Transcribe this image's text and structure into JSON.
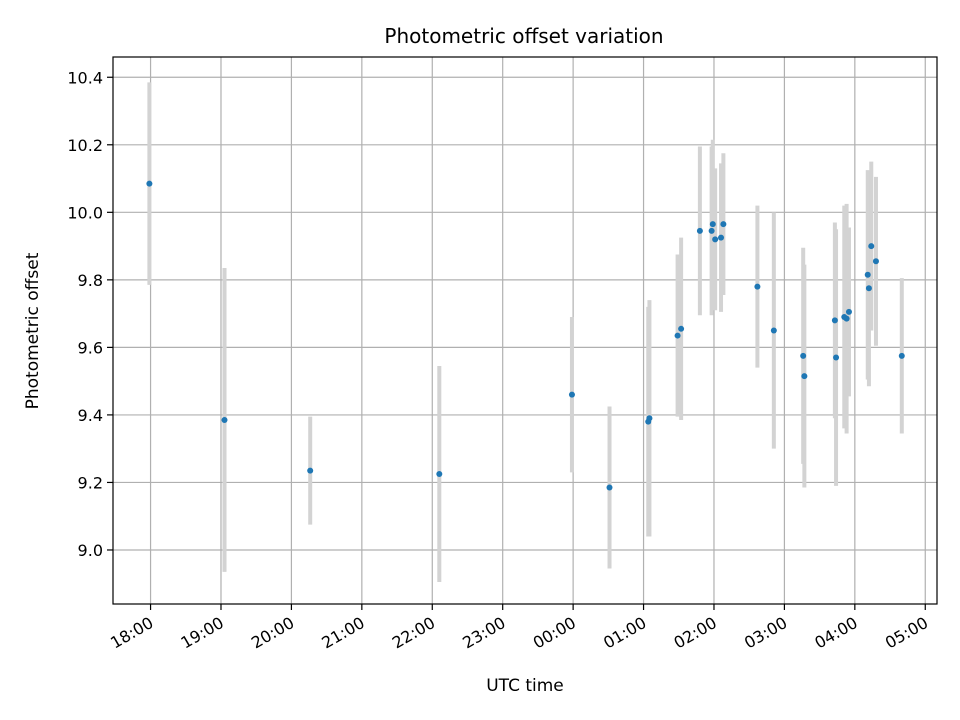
{
  "chart_data": {
    "type": "scatter",
    "title": "Photometric offset variation",
    "xlabel": "UTC time",
    "ylabel": "Photometric offset",
    "x_axis_type": "time",
    "x_ticks": [
      "18:00",
      "19:00",
      "20:00",
      "21:00",
      "22:00",
      "23:00",
      "00:00",
      "01:00",
      "02:00",
      "03:00",
      "04:00",
      "05:00"
    ],
    "y_ticks": [
      "9.0",
      "9.2",
      "9.4",
      "9.6",
      "9.8",
      "10.0",
      "10.2",
      "10.4"
    ],
    "ylim": [
      8.84,
      10.46
    ],
    "xlim": [
      "17:28",
      "05:10"
    ],
    "grid": true,
    "marker_color": "#1f77b4",
    "errorbar_color": "#d3d3d3",
    "points": [
      {
        "x": "17:59",
        "y": 10.085,
        "err": 0.3
      },
      {
        "x": "19:03",
        "y": 9.385,
        "err": 0.45
      },
      {
        "x": "20:16",
        "y": 9.235,
        "err": 0.16
      },
      {
        "x": "22:06",
        "y": 9.225,
        "err": 0.32
      },
      {
        "x": "23:59",
        "y": 9.46,
        "err": 0.23
      },
      {
        "x": "00:31",
        "y": 9.185,
        "err": 0.24
      },
      {
        "x": "01:04",
        "y": 9.38,
        "err": 0.34
      },
      {
        "x": "01:05",
        "y": 9.39,
        "err": 0.35
      },
      {
        "x": "01:29",
        "y": 9.635,
        "err": 0.24
      },
      {
        "x": "01:32",
        "y": 9.655,
        "err": 0.27
      },
      {
        "x": "01:48",
        "y": 9.945,
        "err": 0.25
      },
      {
        "x": "01:58",
        "y": 9.945,
        "err": 0.25
      },
      {
        "x": "01:59",
        "y": 9.965,
        "err": 0.25
      },
      {
        "x": "02:01",
        "y": 9.92,
        "err": 0.21
      },
      {
        "x": "02:06",
        "y": 9.925,
        "err": 0.22
      },
      {
        "x": "02:08",
        "y": 9.965,
        "err": 0.21
      },
      {
        "x": "02:37",
        "y": 9.78,
        "err": 0.24
      },
      {
        "x": "02:51",
        "y": 9.65,
        "err": 0.35
      },
      {
        "x": "03:16",
        "y": 9.575,
        "err": 0.32
      },
      {
        "x": "03:17",
        "y": 9.515,
        "err": 0.33
      },
      {
        "x": "03:43",
        "y": 9.68,
        "err": 0.29
      },
      {
        "x": "03:44",
        "y": 9.57,
        "err": 0.38
      },
      {
        "x": "03:51",
        "y": 9.69,
        "err": 0.33
      },
      {
        "x": "03:53",
        "y": 9.685,
        "err": 0.34
      },
      {
        "x": "03:55",
        "y": 9.705,
        "err": 0.25
      },
      {
        "x": "04:11",
        "y": 9.815,
        "err": 0.31
      },
      {
        "x": "04:12",
        "y": 9.775,
        "err": 0.29
      },
      {
        "x": "04:14",
        "y": 9.9,
        "err": 0.25
      },
      {
        "x": "04:18",
        "y": 9.855,
        "err": 0.25
      },
      {
        "x": "04:40",
        "y": 9.575,
        "err": 0.23
      }
    ]
  }
}
